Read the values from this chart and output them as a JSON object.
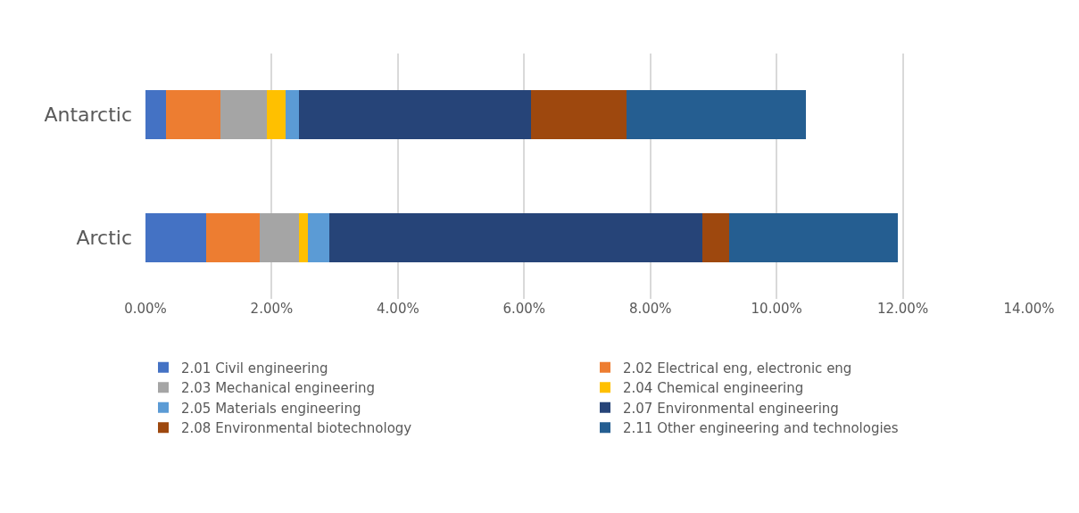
{
  "chart_data": {
    "type": "bar",
    "orientation": "horizontal",
    "stacked": true,
    "categories": [
      "Antarctic",
      "Arctic"
    ],
    "series": [
      {
        "name": "2.01 Civil engineering",
        "color": "#4472c4",
        "values": [
          0.32,
          0.96
        ]
      },
      {
        "name": "2.02 Electrical eng, electronic eng",
        "color": "#ed7d31",
        "values": [
          0.87,
          0.85
        ]
      },
      {
        "name": "2.03 Mechanical engineering",
        "color": "#a5a5a5",
        "values": [
          0.73,
          0.62
        ]
      },
      {
        "name": "2.04 Chemical engineering",
        "color": "#ffc000",
        "values": [
          0.3,
          0.15
        ]
      },
      {
        "name": "2.05 Materials engineering",
        "color": "#5b9bd5",
        "values": [
          0.21,
          0.34
        ]
      },
      {
        "name": "2.07 Environmental engineering",
        "color": "#264478",
        "values": [
          3.68,
          5.9
        ]
      },
      {
        "name": "2.08 Environmental biotechnology",
        "color": "#9e480e",
        "values": [
          1.51,
          0.43
        ]
      },
      {
        "name": "2.11 Other engineering and technologies",
        "color": "#255e91",
        "values": [
          2.84,
          2.67
        ]
      }
    ],
    "xlim": [
      0,
      14
    ],
    "xticks": [
      {
        "value": 0,
        "label": "0.00%"
      },
      {
        "value": 2,
        "label": "2.00%"
      },
      {
        "value": 4,
        "label": "4.00%"
      },
      {
        "value": 6,
        "label": "6.00%"
      },
      {
        "value": 8,
        "label": "8.00%"
      },
      {
        "value": 10,
        "label": "10.00%"
      },
      {
        "value": 12,
        "label": "12.00%"
      },
      {
        "value": 14,
        "label": "14.00%"
      }
    ],
    "grid": "x",
    "legend": "bottom"
  }
}
